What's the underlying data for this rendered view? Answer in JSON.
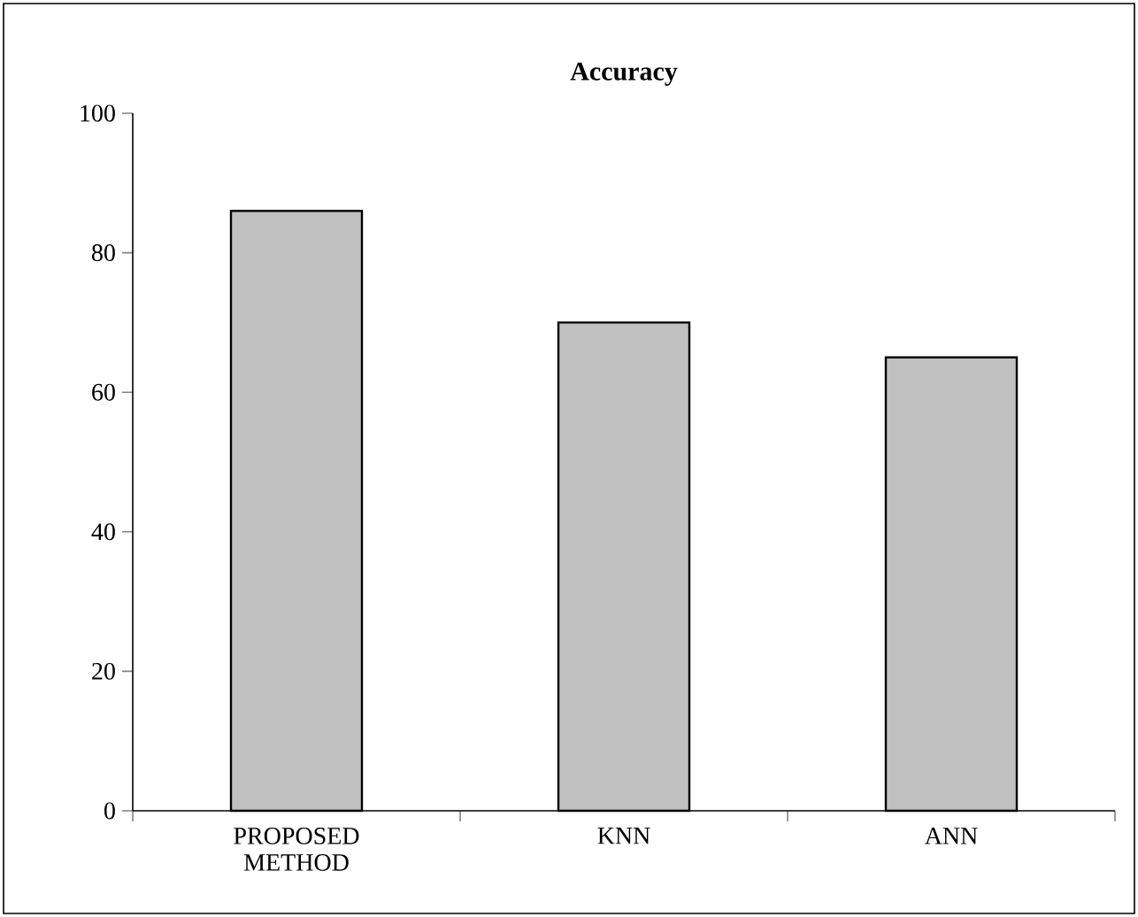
{
  "chart_data": {
    "type": "bar",
    "title": "Accuracy",
    "categories": [
      "PROPOSED METHOD",
      "KNN",
      "ANN"
    ],
    "values": [
      86,
      70,
      65
    ],
    "color": "#c0c0c0",
    "ylim": [
      0,
      100
    ],
    "yticks": [
      0,
      20,
      40,
      60,
      80,
      100
    ]
  }
}
